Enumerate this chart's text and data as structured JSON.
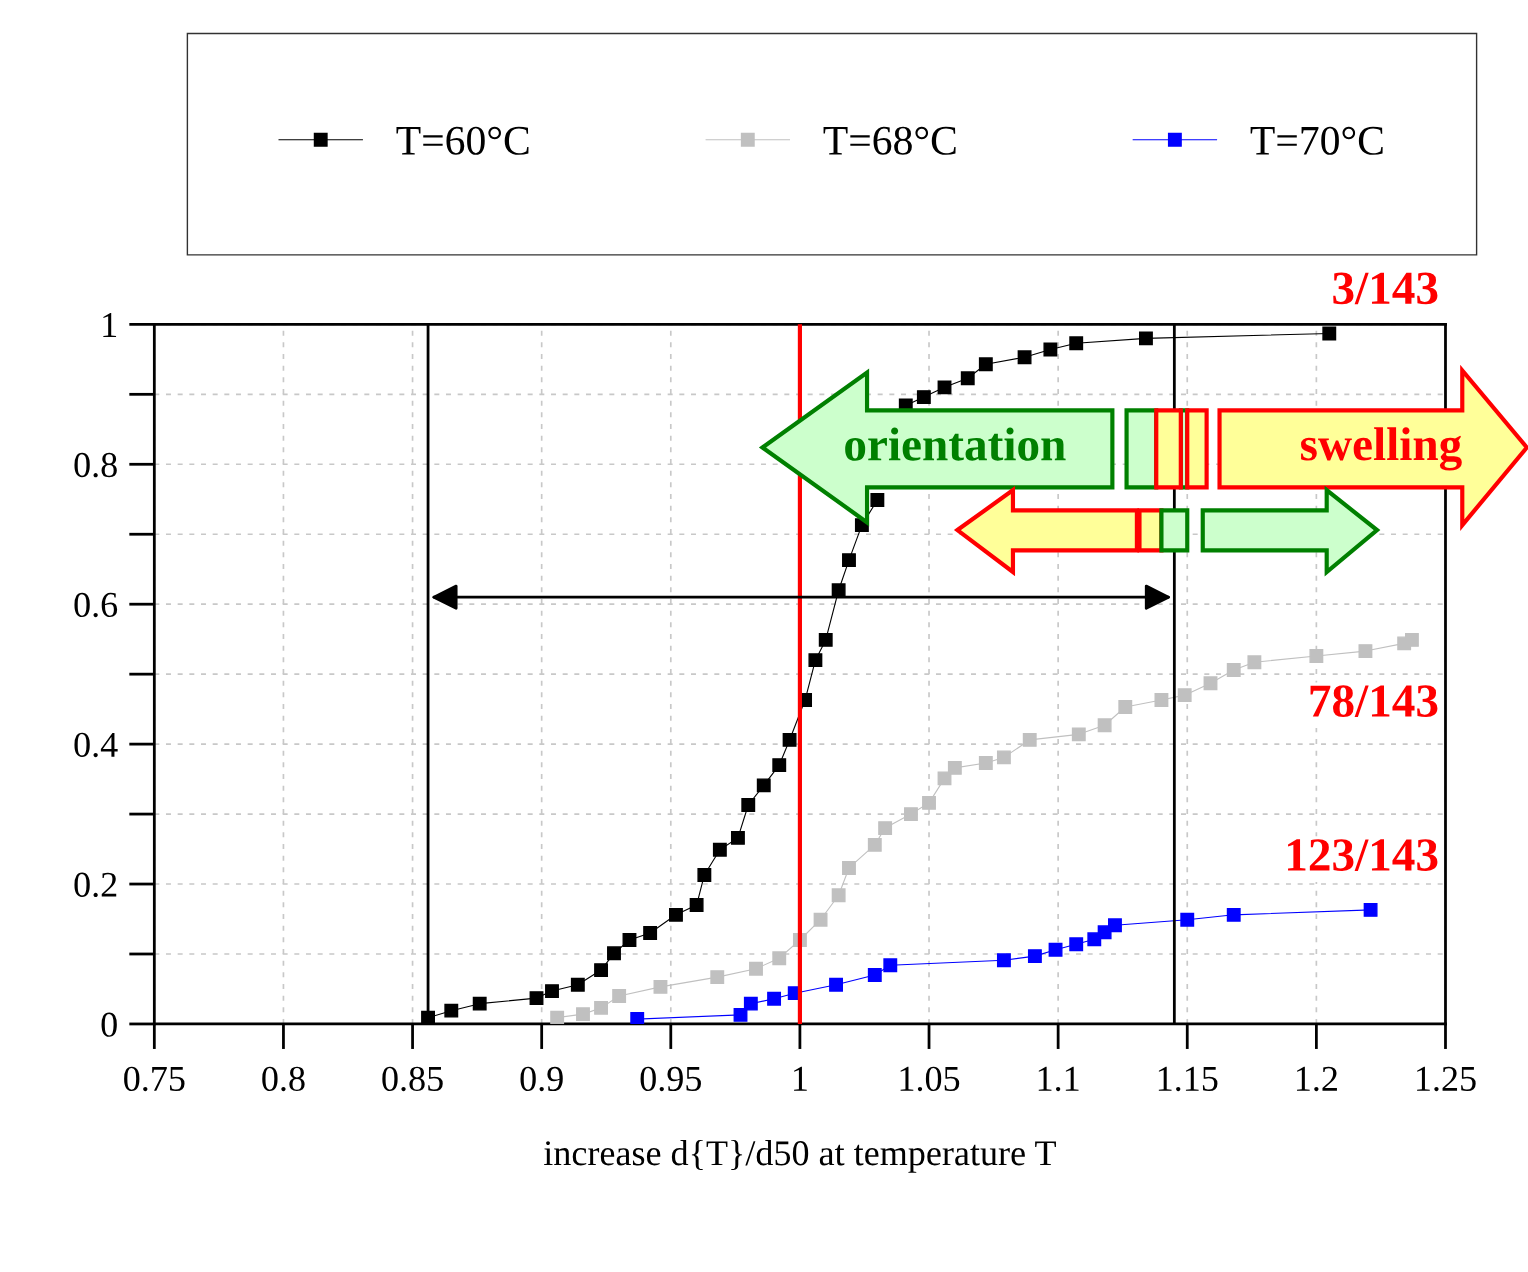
{
  "chart_data": {
    "type": "line",
    "xlabel": "increase d{T}/d50 at temperature T",
    "xlim": [
      0.75,
      1.25
    ],
    "xticks": [
      0.75,
      0.8,
      0.85,
      0.9,
      0.95,
      1,
      1.05,
      1.1,
      1.15,
      1.2,
      1.25
    ],
    "ylim": [
      0,
      1
    ],
    "yticks": [
      0,
      {
        "value": 0.1,
        "label": null
      },
      0.2,
      {
        "value": 0.3,
        "label": null
      },
      0.4,
      {
        "value": 0.5,
        "label": null
      },
      0.6,
      {
        "value": 0.7,
        "label": null
      },
      0.8,
      {
        "value": 0.9,
        "label": null
      },
      1
    ],
    "grid": true,
    "legend": "top",
    "marker": "square",
    "line_style": "solid",
    "series": [
      {
        "name": "T=60°C",
        "color": "#000000",
        "x": [
          0.856,
          0.865,
          0.876,
          0.898,
          0.904,
          0.914,
          0.923,
          0.928,
          0.934,
          0.942,
          0.952,
          0.96,
          0.963,
          0.969,
          0.976,
          0.98,
          0.986,
          0.992,
          0.996,
          1.002,
          1.006,
          1.01,
          1.015,
          1.019,
          1.024,
          1.03,
          1.035,
          1.041,
          1.048,
          1.056,
          1.065,
          1.072,
          1.087,
          1.097,
          1.107,
          1.134,
          1.205
        ],
        "values": [
          0.009,
          0.019,
          0.029,
          0.037,
          0.047,
          0.056,
          0.077,
          0.101,
          0.12,
          0.13,
          0.156,
          0.17,
          0.213,
          0.249,
          0.266,
          0.313,
          0.341,
          0.37,
          0.406,
          0.463,
          0.52,
          0.549,
          0.62,
          0.663,
          0.713,
          0.749,
          null,
          0.884,
          0.896,
          0.91,
          0.923,
          0.943,
          0.953,
          0.964,
          0.973,
          0.98,
          0.987
        ]
      },
      {
        "name": "T=68°C",
        "color": "#c0c0c0",
        "x": [
          0.906,
          0.916,
          0.923,
          0.93,
          0.946,
          0.968,
          0.983,
          0.992,
          1.0,
          1.008,
          1.015,
          1.019,
          1.029,
          1.033,
          1.043,
          1.05,
          1.056,
          1.06,
          1.072,
          1.079,
          1.089,
          1.108,
          1.118,
          1.126,
          1.14,
          1.149,
          1.159,
          1.168,
          1.176,
          1.2,
          1.219,
          1.234,
          1.237
        ],
        "values": [
          0.009,
          0.014,
          0.023,
          0.04,
          0.053,
          0.067,
          0.079,
          0.094,
          0.12,
          0.149,
          0.184,
          0.223,
          0.256,
          0.28,
          0.3,
          0.316,
          0.351,
          0.366,
          0.373,
          0.381,
          0.406,
          0.414,
          0.427,
          0.453,
          0.463,
          0.47,
          0.487,
          0.506,
          0.517,
          0.526,
          0.533,
          0.544,
          0.549
        ]
      },
      {
        "name": "T=70°C",
        "color": "#0000ff",
        "x": [
          0.937,
          0.977,
          0.981,
          0.99,
          0.998,
          1.014,
          1.029,
          1.035,
          1.079,
          1.091,
          1.099,
          1.107,
          1.114,
          1.118,
          1.122,
          1.15,
          1.168,
          1.221
        ],
        "values": [
          0.007,
          0.013,
          0.029,
          0.036,
          0.044,
          0.056,
          0.07,
          0.084,
          0.091,
          0.097,
          0.106,
          0.114,
          0.121,
          0.131,
          0.141,
          0.149,
          0.156,
          0.163
        ]
      }
    ],
    "ref_lines": [
      {
        "axis": "x",
        "value": 1,
        "color": "#ff0000"
      },
      {
        "axis": "x",
        "value": 0.856,
        "color": "#000000"
      },
      {
        "axis": "x",
        "value": 1.145,
        "color": "#000000"
      }
    ],
    "annotations": [
      "3/143",
      "78/143",
      "123/143",
      "orientation",
      "swelling"
    ]
  }
}
